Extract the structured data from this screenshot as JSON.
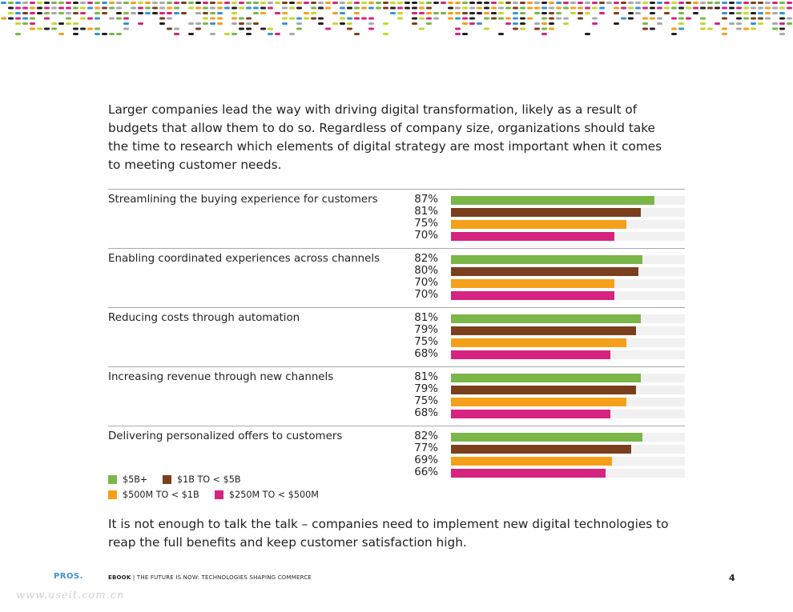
{
  "intro_text": "Larger companies lead the way with driving digital transformation, likely as a result of budgets that allow them to do so. Regardless of company size, organizations should take the time to research which elements of digital strategy are most important when it comes to meeting customer needs.",
  "chart_data": {
    "type": "bar",
    "orientation": "horizontal",
    "xlim": [
      0,
      100
    ],
    "categories": [
      "Streamlining the buying experience for customers",
      "Enabling coordinated experiences across channels",
      "Reducing costs through automation",
      "Increasing revenue through new channels",
      "Delivering personalized offers to customers"
    ],
    "series": [
      {
        "name": "$5B+",
        "color": "#7ab648",
        "values": [
          87,
          82,
          81,
          81,
          82
        ]
      },
      {
        "name": "$1B TO < $5B",
        "color": "#7b3f1d",
        "values": [
          81,
          80,
          79,
          79,
          77
        ]
      },
      {
        "name": "$500M TO < $1B",
        "color": "#f5a01a",
        "values": [
          75,
          70,
          75,
          75,
          69
        ]
      },
      {
        "name": "$250M TO < $500M",
        "color": "#d5237f",
        "values": [
          70,
          70,
          68,
          68,
          66
        ]
      }
    ],
    "value_format": "%",
    "track_color": "#f1f1f2"
  },
  "outro_text": "It is not enough to talk the talk – companies need to implement new digital technologies to reap the full benefits and keep customer satisfaction high.",
  "footer": {
    "logo": "PROS.",
    "label": "EBOOK",
    "separator": "|",
    "title": "THE FUTURE IS NOW: TECHNOLOGIES SHAPING COMMERCE",
    "page_number": "4"
  },
  "watermark": "www.useit.com.cn",
  "colors": {
    "dot_palette": [
      "#231f20",
      "#7ab648",
      "#f5a01a",
      "#d5237f",
      "#3a93d0",
      "#7b3f1d",
      "#c5d92d",
      "#a7a9ac"
    ]
  }
}
